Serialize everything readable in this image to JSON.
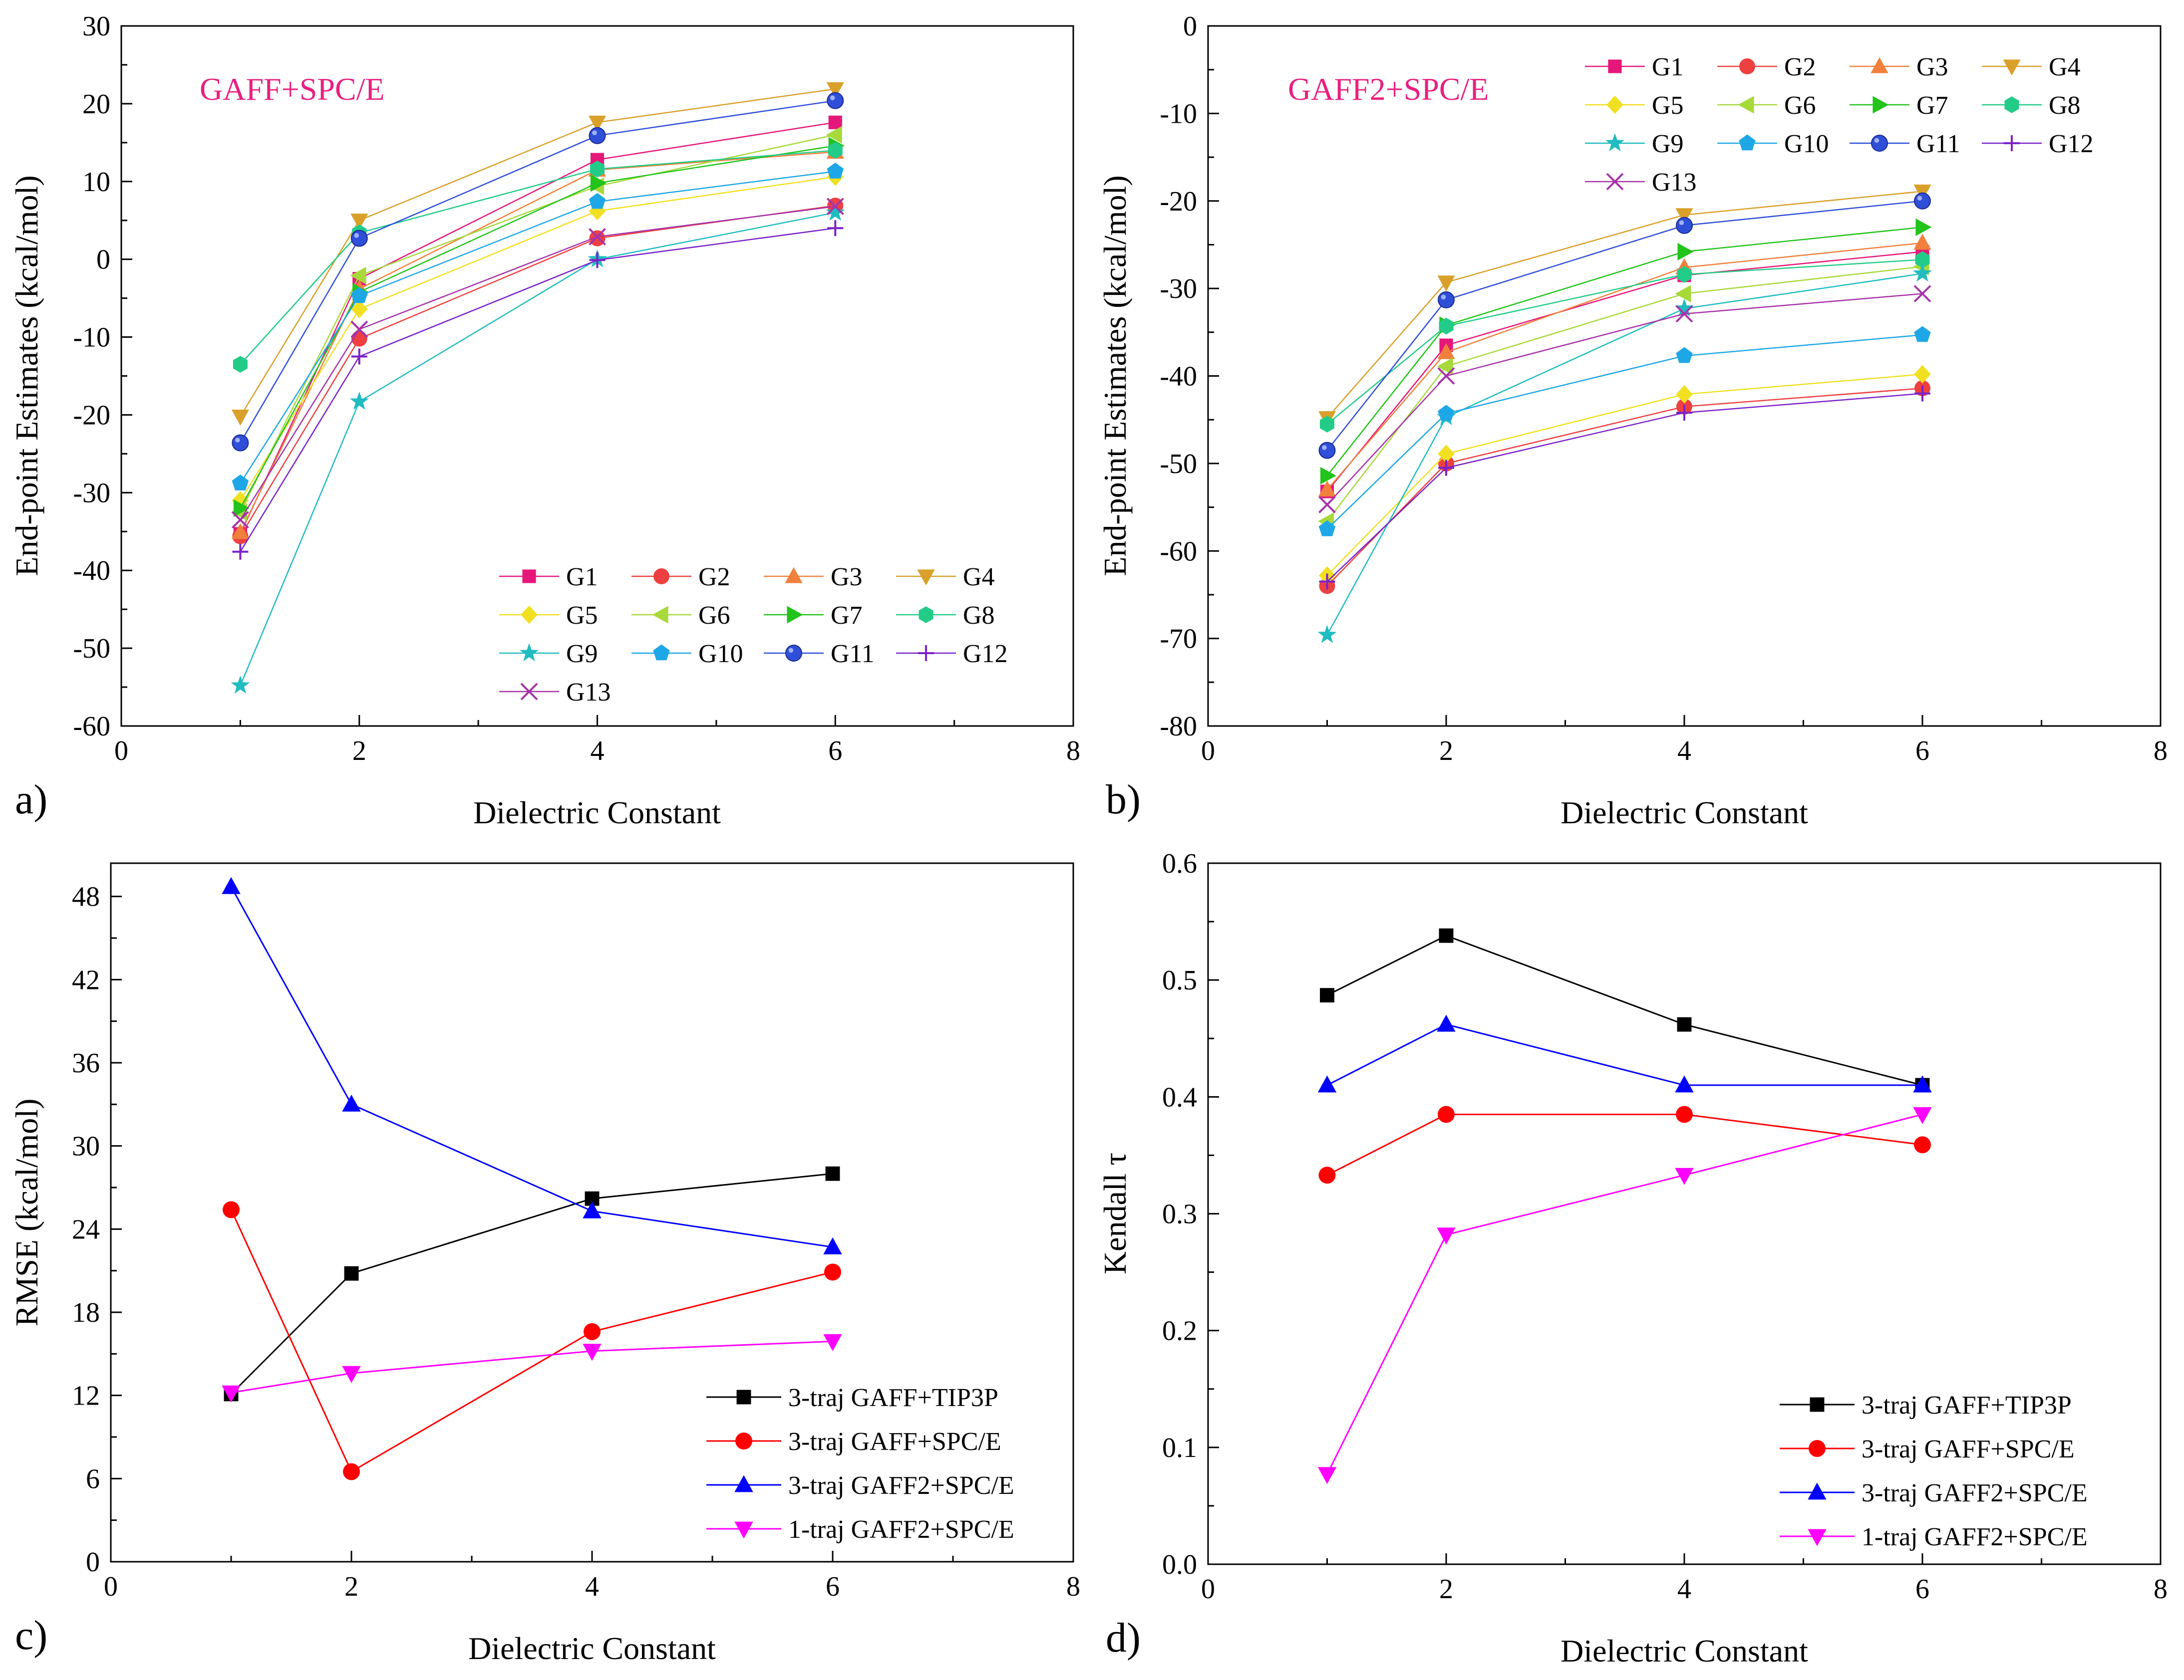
{
  "chart_data": [
    {
      "type": "line",
      "panel_label": "a)",
      "title": "GAFF+SPC/E",
      "title_color": "#e8207f",
      "xlabel": "Dielectric Constant",
      "ylabel": "End-point Estimates (kcal/mol)",
      "xlim": [
        0,
        8
      ],
      "ylim": [
        -60,
        30
      ],
      "xticks": [
        0,
        2,
        4,
        6,
        8
      ],
      "yticks": [
        -60,
        -50,
        -40,
        -30,
        -20,
        -10,
        0,
        10,
        20,
        30
      ],
      "x": [
        1,
        2,
        4,
        6
      ],
      "legend_position": "bottom-right",
      "legend_columns": 4,
      "series": [
        {
          "name": "G1",
          "marker": "square",
          "color": "#e6177a",
          "values": [
            -35.3,
            -2.5,
            12.8,
            17.6
          ]
        },
        {
          "name": "G2",
          "marker": "circle",
          "color": "#ee4040",
          "values": [
            -35.6,
            -10.2,
            2.7,
            6.9
          ]
        },
        {
          "name": "G3",
          "marker": "triangle-up",
          "color": "#f0803c",
          "values": [
            -35.1,
            -3.8,
            11.5,
            13.8
          ]
        },
        {
          "name": "G4",
          "marker": "triangle-down",
          "color": "#d9a02a",
          "values": [
            -20.2,
            5.0,
            17.6,
            21.9
          ]
        },
        {
          "name": "G5",
          "marker": "diamond",
          "color": "#f1e021",
          "values": [
            -31.0,
            -6.4,
            6.2,
            10.6
          ]
        },
        {
          "name": "G6",
          "marker": "triangle-left",
          "color": "#a7d93a",
          "values": [
            -32.5,
            -2.1,
            9.4,
            16.0
          ]
        },
        {
          "name": "G7",
          "marker": "triangle-right",
          "color": "#22c31b",
          "values": [
            -32.0,
            -4.2,
            9.8,
            14.6
          ]
        },
        {
          "name": "G8",
          "marker": "hexagon",
          "color": "#22cc88",
          "values": [
            -13.5,
            3.4,
            11.6,
            14.0
          ]
        },
        {
          "name": "G9",
          "marker": "star",
          "color": "#20bcc0",
          "values": [
            -54.8,
            -18.3,
            0.0,
            6.0
          ]
        },
        {
          "name": "G10",
          "marker": "pentagon",
          "color": "#1ea7e6",
          "values": [
            -28.8,
            -4.7,
            7.4,
            11.3
          ]
        },
        {
          "name": "G11",
          "marker": "sphere",
          "color": "#2f4fd8",
          "values": [
            -23.6,
            2.7,
            15.9,
            20.4
          ]
        },
        {
          "name": "G12",
          "marker": "plus",
          "color": "#7a22c8",
          "values": [
            -37.6,
            -12.5,
            -0.1,
            4.0
          ]
        },
        {
          "name": "G13",
          "marker": "x",
          "color": "#a633a8",
          "values": [
            -33.5,
            -9.0,
            2.9,
            6.8
          ]
        }
      ]
    },
    {
      "type": "line",
      "panel_label": "b)",
      "title": "GAFF2+SPC/E",
      "title_color": "#e8207f",
      "xlabel": "Dielectric Constant",
      "ylabel": "End-point Estimates (kcal/mol)",
      "xlim": [
        0,
        8
      ],
      "ylim": [
        -80,
        0
      ],
      "xticks": [
        0,
        2,
        4,
        6,
        8
      ],
      "yticks": [
        -80,
        -70,
        -60,
        -50,
        -40,
        -30,
        -20,
        -10,
        0
      ],
      "x": [
        1,
        2,
        4,
        6
      ],
      "legend_position": "top-right",
      "legend_columns": 4,
      "series": [
        {
          "name": "G1",
          "marker": "square",
          "color": "#e6177a",
          "values": [
            -53.2,
            -36.5,
            -28.5,
            -25.8
          ]
        },
        {
          "name": "G2",
          "marker": "circle",
          "color": "#ee4040",
          "values": [
            -64.0,
            -50.0,
            -43.5,
            -41.4
          ]
        },
        {
          "name": "G3",
          "marker": "triangle-up",
          "color": "#f0803c",
          "values": [
            -53.0,
            -37.3,
            -27.6,
            -24.8
          ]
        },
        {
          "name": "G4",
          "marker": "triangle-down",
          "color": "#d9a02a",
          "values": [
            -44.8,
            -29.3,
            -21.6,
            -18.9
          ]
        },
        {
          "name": "G5",
          "marker": "diamond",
          "color": "#f1e021",
          "values": [
            -62.8,
            -48.9,
            -42.1,
            -39.8
          ]
        },
        {
          "name": "G6",
          "marker": "triangle-left",
          "color": "#a7d93a",
          "values": [
            -56.6,
            -38.9,
            -30.6,
            -27.5
          ]
        },
        {
          "name": "G7",
          "marker": "triangle-right",
          "color": "#22c31b",
          "values": [
            -51.4,
            -34.2,
            -25.8,
            -23.0
          ]
        },
        {
          "name": "G8",
          "marker": "hexagon",
          "color": "#22cc88",
          "values": [
            -45.5,
            -34.3,
            -28.4,
            -26.7
          ]
        },
        {
          "name": "G9",
          "marker": "star",
          "color": "#20bcc0",
          "values": [
            -69.6,
            -44.7,
            -32.3,
            -28.3
          ]
        },
        {
          "name": "G10",
          "marker": "pentagon",
          "color": "#1ea7e6",
          "values": [
            -57.5,
            -44.3,
            -37.7,
            -35.3
          ]
        },
        {
          "name": "G11",
          "marker": "sphere",
          "color": "#2f4fd8",
          "values": [
            -48.5,
            -31.3,
            -22.8,
            -20.0
          ]
        },
        {
          "name": "G12",
          "marker": "plus",
          "color": "#7a22c8",
          "values": [
            -63.5,
            -50.5,
            -44.2,
            -42.0
          ]
        },
        {
          "name": "G13",
          "marker": "x",
          "color": "#a633a8",
          "values": [
            -54.7,
            -40.0,
            -32.9,
            -30.6
          ]
        }
      ]
    },
    {
      "type": "line",
      "panel_label": "c)",
      "title": "",
      "xlabel": "Dielectric Constant",
      "ylabel": "RMSE (kcal/mol)",
      "xlim": [
        0,
        8
      ],
      "ylim": [
        0,
        50.4
      ],
      "xticks": [
        0,
        2,
        4,
        6,
        8
      ],
      "yticks": [
        0,
        6,
        12,
        18,
        24,
        30,
        36,
        42,
        48
      ],
      "x": [
        1,
        2,
        4,
        6
      ],
      "legend_position": "bottom-right",
      "legend_columns": 1,
      "series": [
        {
          "name": "3-traj GAFF+TIP3P",
          "marker": "square",
          "color": "#000000",
          "values": [
            12.1,
            20.8,
            26.2,
            28.0
          ]
        },
        {
          "name": "3-traj GAFF+SPC/E",
          "marker": "circle",
          "color": "#ff0000",
          "values": [
            25.4,
            6.5,
            16.6,
            20.9
          ]
        },
        {
          "name": "3-traj GAFF2+SPC/E",
          "marker": "triangle-up",
          "color": "#0000ff",
          "values": [
            48.7,
            33.0,
            25.3,
            22.7
          ]
        },
        {
          "name": "1-traj GAFF2+SPC/E",
          "marker": "triangle-down",
          "color": "#ff00ff",
          "values": [
            12.2,
            13.6,
            15.2,
            15.9
          ]
        }
      ]
    },
    {
      "type": "line",
      "panel_label": "d)",
      "title": "",
      "xlabel": "Dielectric Constant",
      "ylabel": "Kendall τ",
      "xlim": [
        0,
        8
      ],
      "ylim": [
        0.0,
        0.6
      ],
      "xticks": [
        0,
        2,
        4,
        6,
        8
      ],
      "yticks": [
        0.0,
        0.1,
        0.2,
        0.3,
        0.4,
        0.5,
        0.6
      ],
      "x": [
        1,
        2,
        4,
        6
      ],
      "legend_position": "bottom-right",
      "legend_columns": 1,
      "series": [
        {
          "name": "3-traj GAFF+TIP3P",
          "marker": "square",
          "color": "#000000",
          "values": [
            0.487,
            0.538,
            0.462,
            0.41
          ]
        },
        {
          "name": "3-traj GAFF+SPC/E",
          "marker": "circle",
          "color": "#ff0000",
          "values": [
            0.333,
            0.385,
            0.385,
            0.359
          ]
        },
        {
          "name": "3-traj GAFF2+SPC/E",
          "marker": "triangle-up",
          "color": "#0000ff",
          "values": [
            0.41,
            0.462,
            0.41,
            0.41
          ]
        },
        {
          "name": "1-traj GAFF2+SPC/E",
          "marker": "triangle-down",
          "color": "#ff00ff",
          "values": [
            0.077,
            0.282,
            0.333,
            0.385
          ]
        }
      ]
    }
  ]
}
